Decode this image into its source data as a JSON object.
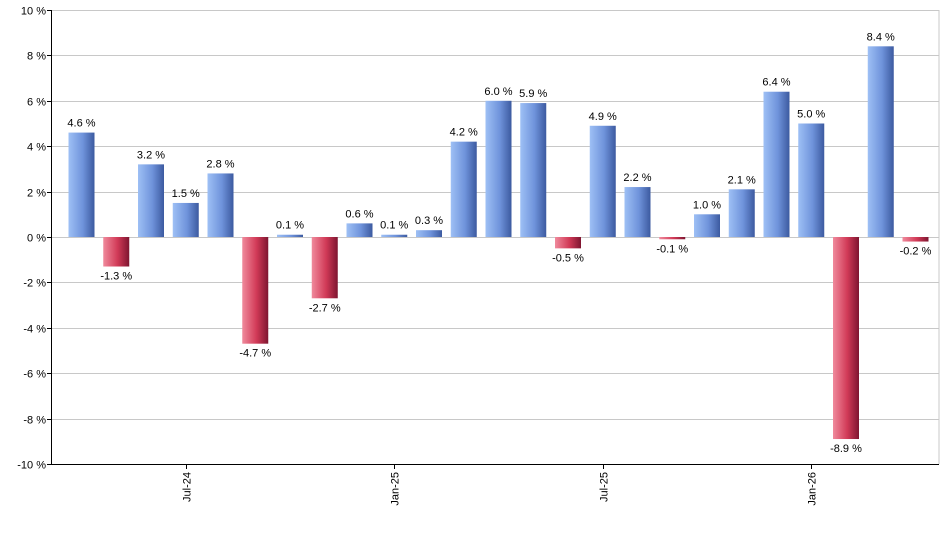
{
  "chart_data": {
    "type": "bar",
    "series": [
      {
        "values": [
          4.6,
          -1.3,
          3.2,
          1.5,
          2.8,
          -4.7,
          0.1,
          -2.7,
          0.6,
          0.1,
          0.3,
          4.2,
          6.0,
          5.9,
          -0.5,
          4.9,
          2.2,
          -0.1,
          1.0,
          2.1,
          6.4,
          5.0,
          -8.9,
          8.4,
          -0.2
        ],
        "labels": [
          "4.6 %",
          "-1.3 %",
          "3.2 %",
          "1.5 %",
          "2.8 %",
          "-4.7 %",
          "0.1 %",
          "-2.7 %",
          "0.6 %",
          "0.1 %",
          "0.3 %",
          "4.2 %",
          "6.0 %",
          "5.9 %",
          "-0.5 %",
          "4.9 %",
          "2.2 %",
          "-0.1 %",
          "1.0 %",
          "2.1 %",
          "6.4 %",
          "5.0 %",
          "-8.9 %",
          "8.4 %",
          "-0.2 %"
        ]
      }
    ],
    "x_ticks": [
      {
        "index": 3,
        "label": "Jul-24"
      },
      {
        "index": 9,
        "label": "Jan-25"
      },
      {
        "index": 15,
        "label": "Jul-25"
      },
      {
        "index": 21,
        "label": "Jan-26"
      }
    ],
    "ylim": [
      -10,
      10
    ],
    "y_ticks": [
      10,
      8,
      6,
      4,
      2,
      0,
      -2,
      -4,
      -6,
      -8,
      -10
    ],
    "y_tick_labels": [
      "10 %",
      "8 %",
      "6 %",
      "4 %",
      "2 %",
      "0 %",
      "-2 %",
      "-4 %",
      "-6 %",
      "-8 %",
      "-10 %"
    ],
    "grid": true,
    "colors": {
      "positive": "#7f9fe0",
      "negative": "#c8334f",
      "grid": "#c8c8c8",
      "axis": "#000000"
    }
  }
}
